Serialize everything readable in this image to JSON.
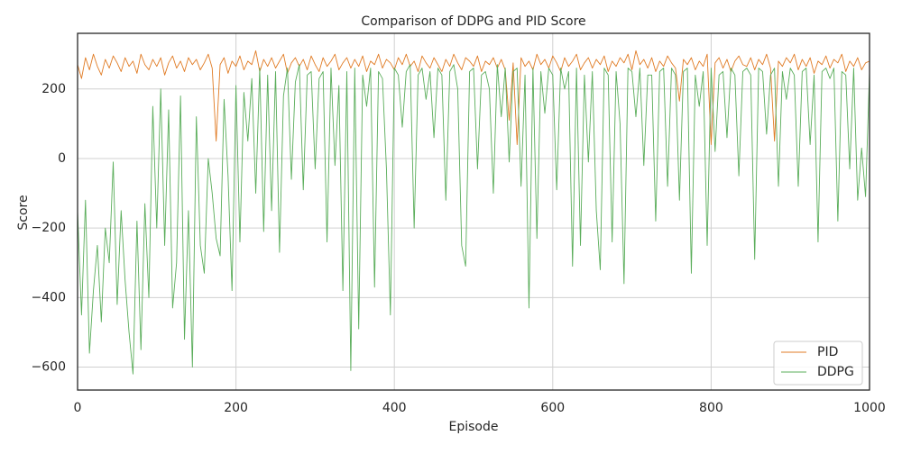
{
  "chart_data": {
    "type": "line",
    "title": "Comparison of DDPG and PID Score",
    "x_label": "Episode",
    "y_label": "Score",
    "x": [
      0,
      5,
      10,
      15,
      20,
      25,
      30,
      35,
      40,
      45,
      50,
      55,
      60,
      65,
      70,
      75,
      80,
      85,
      90,
      95,
      100,
      105,
      110,
      115,
      120,
      125,
      130,
      135,
      140,
      145,
      150,
      155,
      160,
      165,
      170,
      175,
      180,
      185,
      190,
      195,
      200,
      205,
      210,
      215,
      220,
      225,
      230,
      235,
      240,
      245,
      250,
      255,
      260,
      265,
      270,
      275,
      280,
      285,
      290,
      295,
      300,
      305,
      310,
      315,
      320,
      325,
      330,
      335,
      340,
      345,
      350,
      355,
      360,
      365,
      370,
      375,
      380,
      385,
      390,
      395,
      400,
      405,
      410,
      415,
      420,
      425,
      430,
      435,
      440,
      445,
      450,
      455,
      460,
      465,
      470,
      475,
      480,
      485,
      490,
      495,
      500,
      505,
      510,
      515,
      520,
      525,
      530,
      535,
      540,
      545,
      550,
      555,
      560,
      565,
      570,
      575,
      580,
      585,
      590,
      595,
      600,
      605,
      610,
      615,
      620,
      625,
      630,
      635,
      640,
      645,
      650,
      655,
      660,
      665,
      670,
      675,
      680,
      685,
      690,
      695,
      700,
      705,
      710,
      715,
      720,
      725,
      730,
      735,
      740,
      745,
      750,
      755,
      760,
      765,
      770,
      775,
      780,
      785,
      790,
      795,
      800,
      805,
      810,
      815,
      820,
      825,
      830,
      835,
      840,
      845,
      850,
      855,
      860,
      865,
      870,
      875,
      880,
      885,
      890,
      895,
      900,
      905,
      910,
      915,
      920,
      925,
      930,
      935,
      940,
      945,
      950,
      955,
      960,
      965,
      970,
      975,
      980,
      985,
      990,
      995,
      1000
    ],
    "series": [
      {
        "name": "PID",
        "color": "#e07b24",
        "values": [
          270,
          230,
          290,
          255,
          300,
          265,
          240,
          285,
          260,
          295,
          275,
          250,
          290,
          265,
          280,
          245,
          300,
          270,
          255,
          285,
          265,
          290,
          240,
          275,
          295,
          260,
          280,
          250,
          290,
          270,
          285,
          255,
          275,
          300,
          260,
          50,
          270,
          290,
          245,
          280,
          265,
          295,
          255,
          280,
          270,
          310,
          250,
          285,
          265,
          290,
          260,
          280,
          300,
          245,
          275,
          290,
          265,
          285,
          255,
          295,
          270,
          250,
          290,
          265,
          280,
          300,
          255,
          275,
          290,
          260,
          285,
          265,
          295,
          250,
          280,
          270,
          300,
          260,
          285,
          275,
          255,
          290,
          270,
          300,
          265,
          280,
          250,
          295,
          275,
          260,
          290,
          270,
          250,
          285,
          265,
          300,
          275,
          255,
          290,
          280,
          265,
          295,
          250,
          280,
          270,
          290,
          260,
          285,
          255,
          110,
          275,
          40,
          290,
          265,
          280,
          255,
          300,
          270,
          285,
          260,
          295,
          275,
          250,
          290,
          265,
          280,
          300,
          255,
          275,
          290,
          260,
          285,
          270,
          295,
          250,
          280,
          265,
          290,
          275,
          300,
          255,
          310,
          270,
          285,
          260,
          290,
          250,
          280,
          265,
          295,
          275,
          260,
          165,
          285,
          270,
          290,
          255,
          280,
          265,
          300,
          40,
          275,
          290,
          260,
          285,
          250,
          280,
          295,
          270,
          265,
          290,
          255,
          285,
          270,
          300,
          260,
          50,
          280,
          265,
          290,
          275,
          300,
          255,
          285,
          265,
          290,
          245,
          280,
          270,
          295,
          260,
          285,
          275,
          300,
          250,
          280,
          265,
          290,
          255,
          275,
          280
        ]
      },
      {
        "name": "DDPG",
        "color": "#5aad5a",
        "values": [
          -150,
          -450,
          -120,
          -560,
          -380,
          -250,
          -470,
          -200,
          -300,
          -10,
          -420,
          -150,
          -350,
          -500,
          -620,
          -180,
          -550,
          -130,
          -400,
          150,
          -200,
          200,
          -250,
          140,
          -430,
          -300,
          180,
          -520,
          -150,
          -600,
          120,
          -250,
          -330,
          0,
          -100,
          -230,
          -280,
          170,
          -50,
          -380,
          210,
          -240,
          190,
          50,
          230,
          -100,
          260,
          -210,
          240,
          -150,
          250,
          -270,
          180,
          260,
          -60,
          220,
          270,
          -90,
          240,
          250,
          -30,
          230,
          250,
          -240,
          260,
          -20,
          210,
          -380,
          250,
          -610,
          260,
          -490,
          240,
          150,
          260,
          -370,
          250,
          230,
          -30,
          -450,
          260,
          240,
          90,
          250,
          270,
          -200,
          240,
          260,
          170,
          250,
          60,
          260,
          240,
          -120,
          250,
          270,
          200,
          -250,
          -310,
          250,
          260,
          -30,
          240,
          250,
          200,
          -100,
          270,
          120,
          260,
          -10,
          250,
          260,
          -80,
          240,
          -430,
          260,
          -230,
          250,
          130,
          260,
          240,
          -90,
          260,
          200,
          250,
          -310,
          260,
          -250,
          240,
          -10,
          250,
          -150,
          -320,
          260,
          240,
          -240,
          250,
          100,
          -360,
          260,
          250,
          120,
          260,
          -20,
          240,
          240,
          -180,
          250,
          260,
          -80,
          260,
          240,
          -120,
          250,
          260,
          -330,
          240,
          150,
          250,
          -250,
          260,
          20,
          240,
          250,
          60,
          260,
          240,
          -50,
          250,
          260,
          240,
          -290,
          260,
          250,
          70,
          240,
          260,
          -80,
          250,
          170,
          260,
          240,
          -80,
          250,
          260,
          40,
          240,
          -240,
          250,
          260,
          230,
          260,
          -180,
          250,
          240,
          -30,
          260,
          -120,
          30,
          -110,
          250
        ]
      }
    ],
    "xlim": [
      0,
      1000
    ],
    "xticks": [
      0,
      200,
      400,
      600,
      800,
      1000
    ],
    "ylim": [
      -666,
      360
    ],
    "yticks": [
      {
        "value": -600,
        "label": "−600"
      },
      {
        "value": -400,
        "label": "−400"
      },
      {
        "value": -200,
        "label": "−200"
      },
      0,
      200
    ],
    "grid": true,
    "legend": "lower right"
  }
}
